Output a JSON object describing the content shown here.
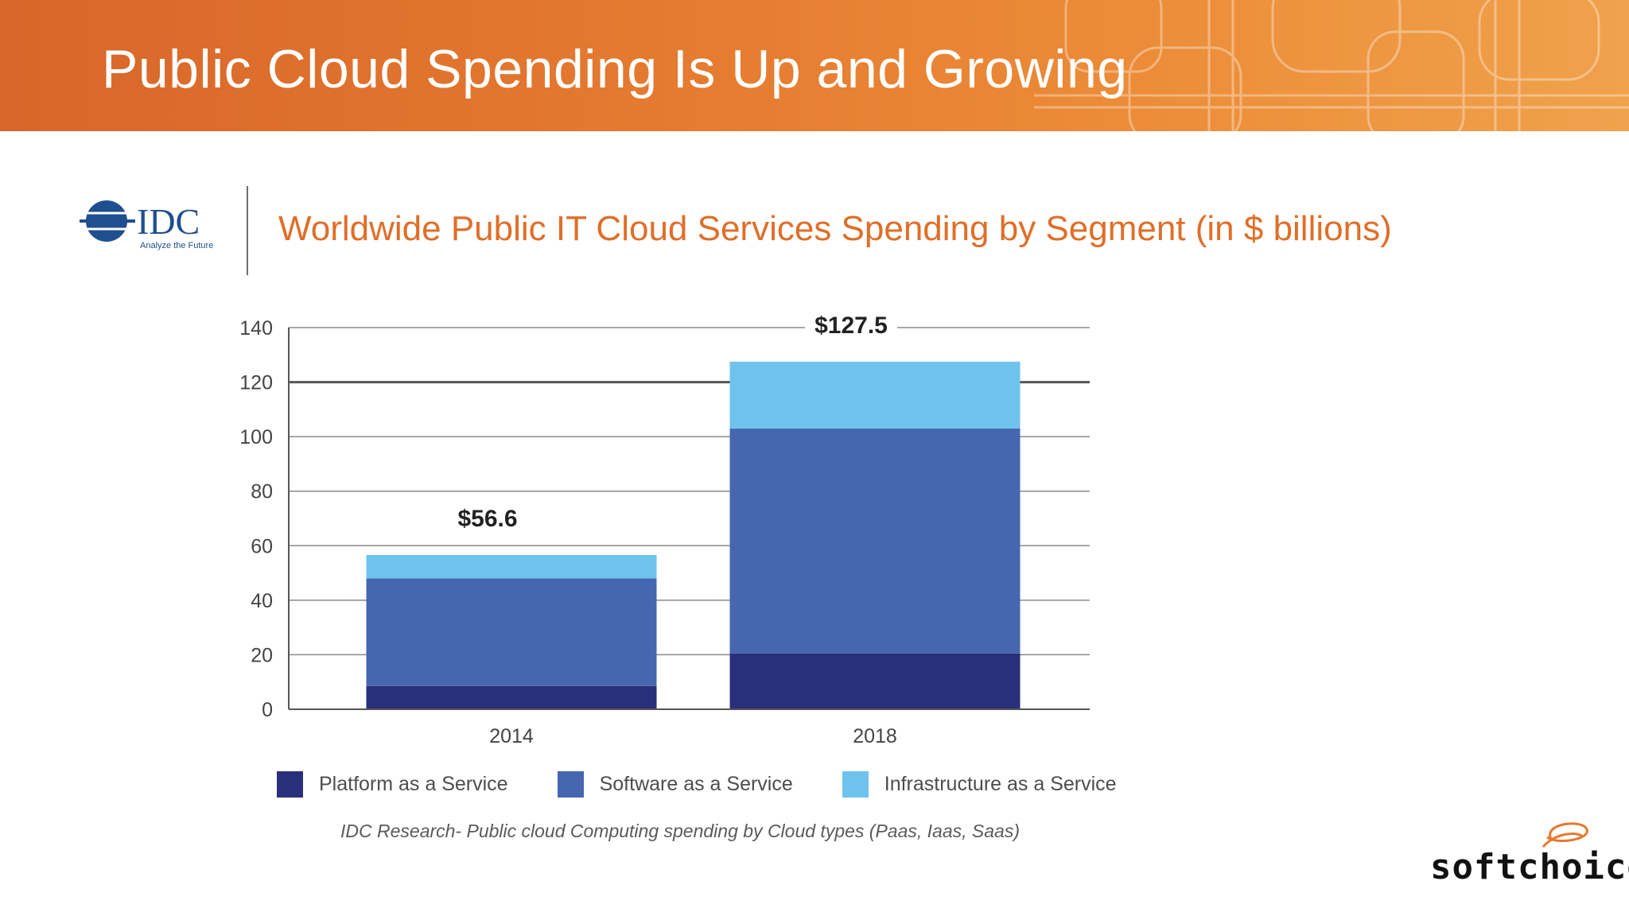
{
  "slide": {
    "title": "Public Cloud Spending Is Up and Growing",
    "chart_heading": "Worldwide Public IT Cloud Services Spending by Segment (in $ billions)",
    "source_caption": "IDC Research- Public cloud Computing spending by Cloud types (Paas, Iaas, Saas)"
  },
  "logos": {
    "idc_name": "IDC",
    "idc_tagline": "Analyze the Future",
    "brand": "softchoice"
  },
  "colors": {
    "header_orange": "#e47a30",
    "heading_orange": "#e06e28",
    "paas": "#2a2f7c",
    "saas": "#4766b0",
    "iaas": "#6ec3ec"
  },
  "chart_data": {
    "type": "bar",
    "stacked": true,
    "title": "",
    "xlabel": "",
    "ylabel": "",
    "categories": [
      "2014",
      "2018"
    ],
    "series": [
      {
        "name": "Platform as a Service",
        "values": [
          8.5,
          20.5
        ]
      },
      {
        "name": "Software as a Service",
        "values": [
          39.5,
          82.5
        ]
      },
      {
        "name": "Infrastructure as a Service",
        "values": [
          8.6,
          24.5
        ]
      }
    ],
    "totals": [
      "$56.6",
      "$127.5"
    ],
    "ylim": [
      0,
      140
    ],
    "yticks": [
      "0",
      "20",
      "40",
      "60",
      "80",
      "100",
      "120",
      "140"
    ],
    "grid": true,
    "legend": "bottom"
  }
}
